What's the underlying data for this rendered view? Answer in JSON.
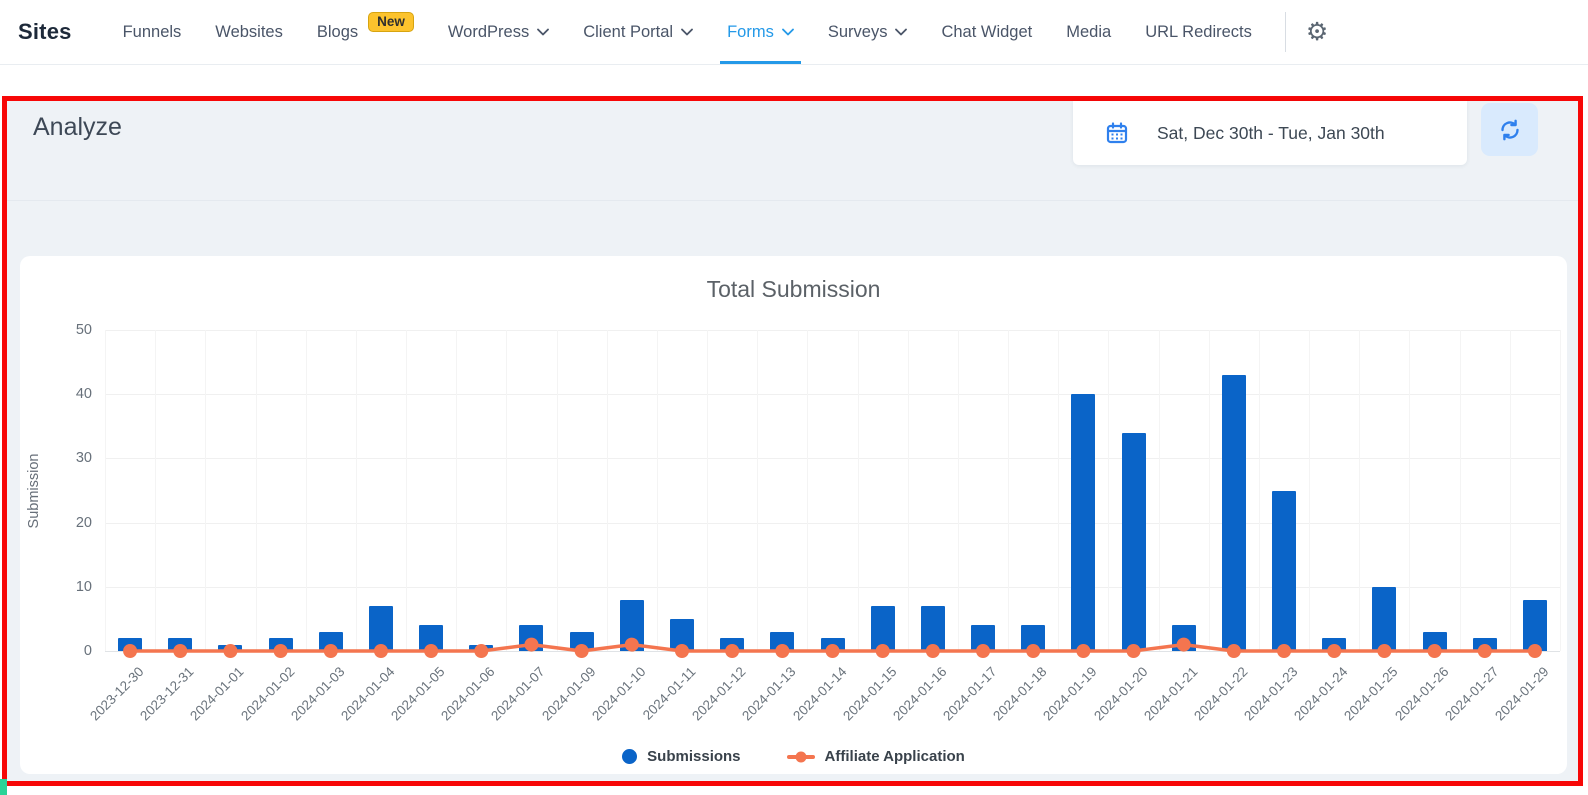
{
  "nav": {
    "brand": "Sites",
    "items": [
      {
        "label": "Funnels"
      },
      {
        "label": "Websites"
      },
      {
        "label": "Blogs",
        "badge": "New"
      },
      {
        "label": "WordPress",
        "chevron": true
      },
      {
        "label": "Client Portal",
        "chevron": true
      },
      {
        "label": "Forms",
        "chevron": true,
        "active": true
      },
      {
        "label": "Surveys",
        "chevron": true
      },
      {
        "label": "Chat Widget"
      },
      {
        "label": "Media"
      },
      {
        "label": "URL Redirects"
      }
    ]
  },
  "analyze": {
    "title": "Analyze",
    "date_range": "Sat, Dec 30th - Tue, Jan 30th"
  },
  "chart_data": {
    "type": "bar",
    "title": "Total Submission",
    "ylabel": "Submission",
    "ylim": [
      0,
      50
    ],
    "yticks": [
      0,
      10,
      20,
      30,
      40,
      50
    ],
    "grid": true,
    "legend_position": "bottom",
    "categories": [
      "2023-12-30",
      "2023-12-31",
      "2024-01-01",
      "2024-01-02",
      "2024-01-03",
      "2024-01-04",
      "2024-01-05",
      "2024-01-06",
      "2024-01-07",
      "2024-01-09",
      "2024-01-10",
      "2024-01-11",
      "2024-01-12",
      "2024-01-13",
      "2024-01-14",
      "2024-01-15",
      "2024-01-16",
      "2024-01-17",
      "2024-01-18",
      "2024-01-19",
      "2024-01-20",
      "2024-01-21",
      "2024-01-22",
      "2024-01-23",
      "2024-01-24",
      "2024-01-25",
      "2024-01-26",
      "2024-01-27",
      "2024-01-29"
    ],
    "series": [
      {
        "name": "Submissions",
        "type": "bar",
        "color": "#0a64c8",
        "values": [
          2,
          2,
          1,
          2,
          3,
          7,
          4,
          1,
          4,
          3,
          8,
          5,
          2,
          3,
          2,
          7,
          7,
          4,
          4,
          40,
          34,
          4,
          43,
          25,
          2,
          10,
          3,
          2,
          8
        ]
      },
      {
        "name": "Affiliate Application",
        "type": "line",
        "color": "#f4754f",
        "values": [
          0,
          0,
          0,
          0,
          0,
          0,
          0,
          0,
          1,
          0,
          1,
          0,
          0,
          0,
          0,
          0,
          0,
          0,
          0,
          0,
          0,
          1,
          0,
          0,
          0,
          0,
          0,
          0,
          0
        ]
      }
    ]
  },
  "colors": {
    "nav_active_blue": "#2499e8",
    "bar_blue": "#0a64c8",
    "line_orange": "#f4754f",
    "annotation_border": "#f70707",
    "badge_yellow": "#fcc32d",
    "icon_blue": "#2f80ed",
    "refresh_bg": "#d9eafd",
    "panel_bg": "#eef2f6",
    "green_artifact": "#2bd397"
  },
  "icons": {
    "gear": "gear-icon",
    "calendar": "calendar-icon",
    "refresh": "refresh-icon",
    "chevron": "chevron-down-icon"
  }
}
